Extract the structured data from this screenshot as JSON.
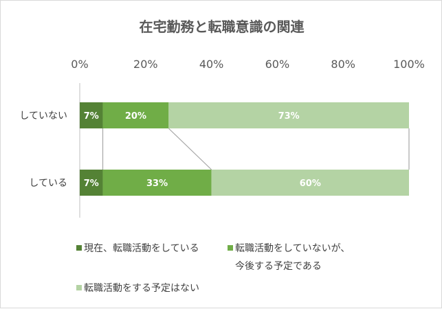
{
  "chart_data": {
    "type": "bar",
    "stacked": "percent",
    "orientation": "horizontal",
    "title": "在宅勤務と転職意識の関連",
    "categories": [
      "していない",
      "している"
    ],
    "series": [
      {
        "name": "現在、転職活動をしている",
        "values": [
          7,
          7
        ],
        "color": "#548235"
      },
      {
        "name": "転職活動をしていないが、今後する予定である",
        "name_lines": [
          "転職活動をしていないが、",
          "今後する予定である"
        ],
        "values": [
          20,
          33
        ],
        "color": "#70ad47"
      },
      {
        "name": "転職活動をする予定はない",
        "values": [
          73,
          60
        ],
        "color": "#b4d3a4"
      }
    ],
    "data_labels": [
      [
        "7%",
        "20%",
        "73%"
      ],
      [
        "7%",
        "33%",
        "60%"
      ]
    ],
    "xlim": [
      0,
      100
    ],
    "x_ticks": [
      "0%",
      "20%",
      "40%",
      "60%",
      "80%",
      "100%"
    ],
    "x_axis_position": "top",
    "series_lines": true,
    "grid": false,
    "legend_position": "bottom"
  }
}
